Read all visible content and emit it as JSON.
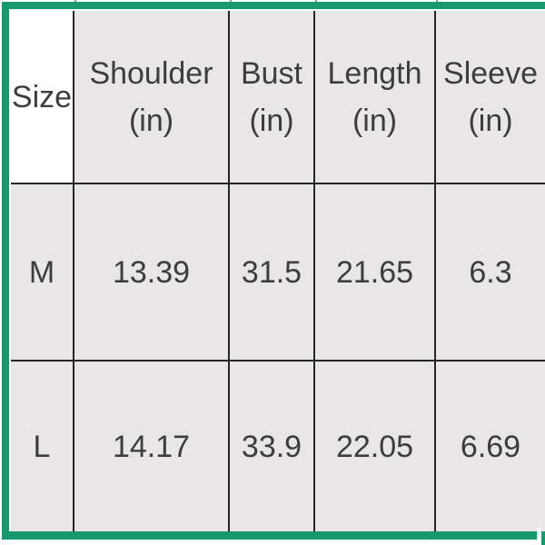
{
  "table": {
    "columns": [
      {
        "label": "Size",
        "unit": ""
      },
      {
        "label": "Shoulder",
        "unit": "(in)"
      },
      {
        "label": "Bust",
        "unit": "(in)"
      },
      {
        "label": "Length",
        "unit": "(in)"
      },
      {
        "label": "Sleeve",
        "unit": "(in)"
      }
    ],
    "rows": [
      {
        "size": "M",
        "shoulder": "13.39",
        "bust": "31.5",
        "length": "21.65",
        "sleeve": "6.3"
      },
      {
        "size": "L",
        "shoulder": "14.17",
        "bust": "33.9",
        "length": "22.05",
        "sleeve": "6.69"
      }
    ]
  },
  "colors": {
    "selection_green": "#17996b",
    "cell_fill": "#e8e7e6",
    "active_cell_fill": "#ffffff",
    "grid_border": "#262626",
    "text": "#3d3d3d"
  }
}
